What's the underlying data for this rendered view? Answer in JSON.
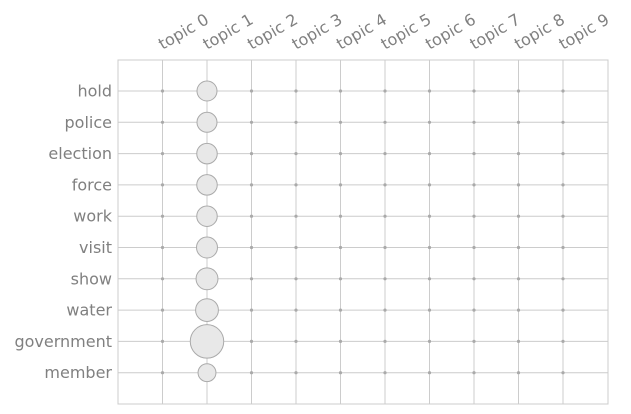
{
  "chart_data": {
    "type": "scatter",
    "subtype": "bubble-matrix",
    "title": "",
    "xlabel": "",
    "ylabel": "",
    "x_categories": [
      "topic 0",
      "topic 1",
      "topic 2",
      "topic 3",
      "topic 4",
      "topic 5",
      "topic 6",
      "topic 7",
      "topic 8",
      "topic 9"
    ],
    "y_categories": [
      "hold",
      "police",
      "election",
      "force",
      "work",
      "visit",
      "show",
      "water",
      "government",
      "member"
    ],
    "x_tick_position": "top",
    "x_tick_rotation_deg": -30,
    "grid": true,
    "legend": "none",
    "values": [
      [
        0,
        1.0,
        0,
        0,
        0,
        0,
        0,
        0,
        0,
        0
      ],
      [
        0,
        1.0,
        0,
        0,
        0,
        0,
        0,
        0,
        0,
        0
      ],
      [
        0,
        1.05,
        0,
        0,
        0,
        0,
        0,
        0,
        0,
        0
      ],
      [
        0,
        1.05,
        0,
        0,
        0,
        0,
        0,
        0,
        0,
        0
      ],
      [
        0,
        1.05,
        0,
        0,
        0,
        0,
        0,
        0,
        0,
        0
      ],
      [
        0,
        1.1,
        0,
        0,
        0,
        0,
        0,
        0,
        0,
        0
      ],
      [
        0,
        1.2,
        0,
        0,
        0,
        0,
        0,
        0,
        0,
        0
      ],
      [
        0,
        1.3,
        0,
        0,
        0,
        0,
        0,
        0,
        0,
        0
      ],
      [
        0,
        2.8,
        0,
        0,
        0,
        0,
        0,
        0,
        0,
        0
      ],
      [
        0,
        0.8,
        0,
        0,
        0,
        0,
        0,
        0,
        0,
        0
      ]
    ],
    "colors": {
      "bubble_fill": "#e8e8e8",
      "bubble_stroke": "#aaaaaa",
      "grid": "#cccccc",
      "tick_text": "#808080",
      "dot": "#aaaaaa"
    }
  }
}
